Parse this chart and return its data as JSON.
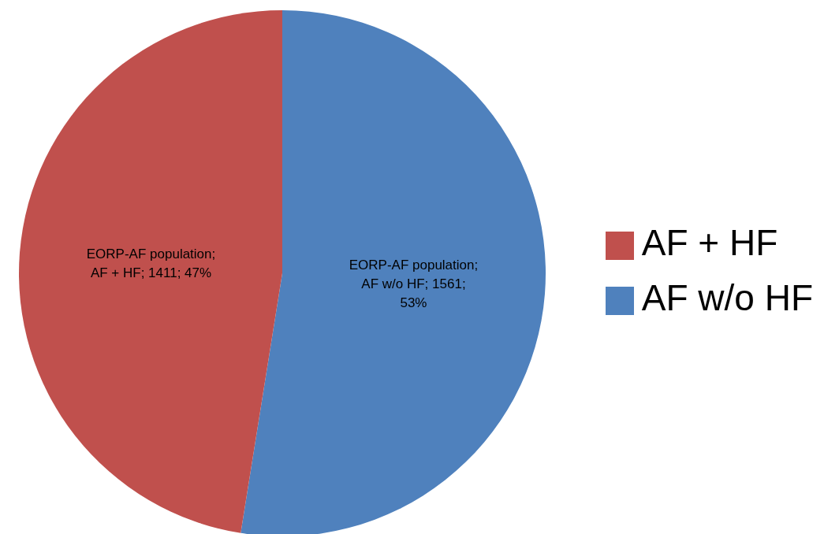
{
  "chart_data": {
    "type": "pie",
    "categories": [
      "AF w/o HF",
      "AF + HF"
    ],
    "values": [
      1561,
      1411
    ],
    "colors": [
      "#4f81bd",
      "#c0504d"
    ],
    "value_labels": [
      "EORP-AF population; AF w/o HF; 1561; 53%",
      "EORP-AF population; AF + HF; 1411; 47%"
    ],
    "legend": "right"
  }
}
